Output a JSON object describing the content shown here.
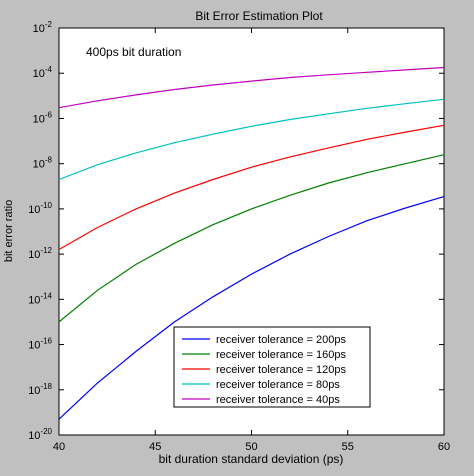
{
  "chart_data": {
    "type": "line",
    "title": "Bit Error Estimation Plot",
    "annotation": "400ps bit duration",
    "xlabel": "bit duration standard deviation (ps)",
    "ylabel": "bit error ratio",
    "xlim": [
      40,
      60
    ],
    "ylim": [
      1e-20,
      0.01
    ],
    "yscale": "log",
    "grid": false,
    "legend_position": "bottom-right",
    "x_ticks": [
      "40",
      "45",
      "50",
      "55",
      "60"
    ],
    "y_tick_base": "10",
    "y_tick_exponents": [
      "-2",
      "-4",
      "-6",
      "-8",
      "-10",
      "-12",
      "-14",
      "-16",
      "-18",
      "-20"
    ],
    "x": [
      40,
      42,
      44,
      46,
      48,
      50,
      52,
      54,
      56,
      58,
      60
    ],
    "series": [
      {
        "name": "receiver tolerance = 200ps",
        "color": "#0000ff",
        "values": [
          5e-20,
          2e-18,
          5e-17,
          1e-15,
          1.3e-14,
          1.3e-13,
          1e-12,
          6e-12,
          3e-11,
          1.1e-10,
          3.5e-10
        ]
      },
      {
        "name": "receiver tolerance = 160ps",
        "color": "#008000",
        "values": [
          1e-15,
          2.5e-14,
          3.5e-13,
          3e-12,
          2e-11,
          1e-10,
          4e-10,
          1.4e-09,
          4e-09,
          1e-08,
          2.5e-08
        ]
      },
      {
        "name": "receiver tolerance = 120ps",
        "color": "#ff0000",
        "values": [
          1.6e-12,
          1.5e-11,
          1e-10,
          5e-10,
          2e-09,
          7e-09,
          2e-08,
          5e-08,
          1.2e-07,
          2.5e-07,
          5e-07
        ]
      },
      {
        "name": "receiver tolerance = 80ps",
        "color": "#00bfbf",
        "values": [
          2e-09,
          9e-09,
          3e-08,
          8.5e-08,
          2e-07,
          4.5e-07,
          9e-07,
          1.6e-06,
          2.8e-06,
          4.5e-06,
          7e-06
        ]
      },
      {
        "name": "receiver tolerance = 40ps",
        "color": "#bf00bf",
        "values": [
          3e-06,
          6e-06,
          1.1e-05,
          1.9e-05,
          3e-05,
          4.5e-05,
          6.5e-05,
          8.5e-05,
          0.00011,
          0.00014,
          0.00018
        ]
      }
    ]
  }
}
